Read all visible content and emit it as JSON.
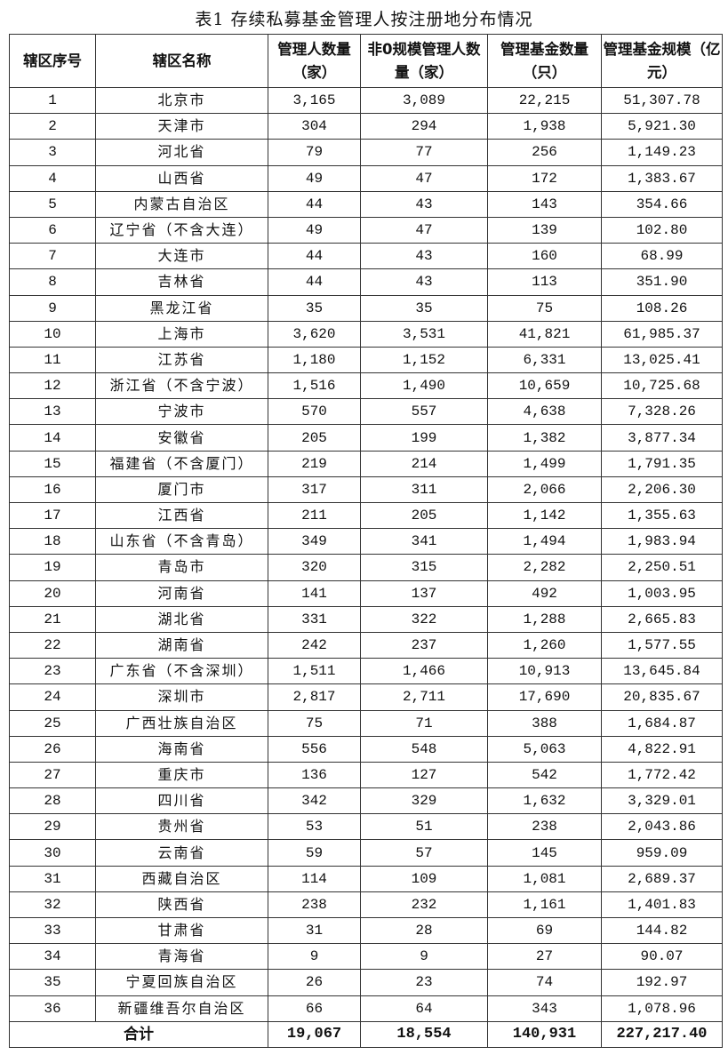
{
  "title": "表1 存续私募基金管理人按注册地分布情况",
  "headers": [
    "辖区序号",
    "辖区名称",
    "管理人数量（家）",
    "非0规模管理人数量（家）",
    "管理基金数量（只）",
    "管理基金规模（亿元）"
  ],
  "rows": [
    [
      "1",
      "北京市",
      "3,165",
      "3,089",
      "22,215",
      "51,307.78"
    ],
    [
      "2",
      "天津市",
      "304",
      "294",
      "1,938",
      "5,921.30"
    ],
    [
      "3",
      "河北省",
      "79",
      "77",
      "256",
      "1,149.23"
    ],
    [
      "4",
      "山西省",
      "49",
      "47",
      "172",
      "1,383.67"
    ],
    [
      "5",
      "内蒙古自治区",
      "44",
      "43",
      "143",
      "354.66"
    ],
    [
      "6",
      "辽宁省（不含大连）",
      "49",
      "47",
      "139",
      "102.80"
    ],
    [
      "7",
      "大连市",
      "44",
      "43",
      "160",
      "68.99"
    ],
    [
      "8",
      "吉林省",
      "44",
      "43",
      "113",
      "351.90"
    ],
    [
      "9",
      "黑龙江省",
      "35",
      "35",
      "75",
      "108.26"
    ],
    [
      "10",
      "上海市",
      "3,620",
      "3,531",
      "41,821",
      "61,985.37"
    ],
    [
      "11",
      "江苏省",
      "1,180",
      "1,152",
      "6,331",
      "13,025.41"
    ],
    [
      "12",
      "浙江省（不含宁波）",
      "1,516",
      "1,490",
      "10,659",
      "10,725.68"
    ],
    [
      "13",
      "宁波市",
      "570",
      "557",
      "4,638",
      "7,328.26"
    ],
    [
      "14",
      "安徽省",
      "205",
      "199",
      "1,382",
      "3,877.34"
    ],
    [
      "15",
      "福建省（不含厦门）",
      "219",
      "214",
      "1,499",
      "1,791.35"
    ],
    [
      "16",
      "厦门市",
      "317",
      "311",
      "2,066",
      "2,206.30"
    ],
    [
      "17",
      "江西省",
      "211",
      "205",
      "1,142",
      "1,355.63"
    ],
    [
      "18",
      "山东省（不含青岛）",
      "349",
      "341",
      "1,494",
      "1,983.94"
    ],
    [
      "19",
      "青岛市",
      "320",
      "315",
      "2,282",
      "2,250.51"
    ],
    [
      "20",
      "河南省",
      "141",
      "137",
      "492",
      "1,003.95"
    ],
    [
      "21",
      "湖北省",
      "331",
      "322",
      "1,288",
      "2,665.83"
    ],
    [
      "22",
      "湖南省",
      "242",
      "237",
      "1,260",
      "1,577.55"
    ],
    [
      "23",
      "广东省（不含深圳）",
      "1,511",
      "1,466",
      "10,913",
      "13,645.84"
    ],
    [
      "24",
      "深圳市",
      "2,817",
      "2,711",
      "17,690",
      "20,835.67"
    ],
    [
      "25",
      "广西壮族自治区",
      "75",
      "71",
      "388",
      "1,684.87"
    ],
    [
      "26",
      "海南省",
      "556",
      "548",
      "5,063",
      "4,822.91"
    ],
    [
      "27",
      "重庆市",
      "136",
      "127",
      "542",
      "1,772.42"
    ],
    [
      "28",
      "四川省",
      "342",
      "329",
      "1,632",
      "3,329.01"
    ],
    [
      "29",
      "贵州省",
      "53",
      "51",
      "238",
      "2,043.86"
    ],
    [
      "30",
      "云南省",
      "59",
      "57",
      "145",
      "959.09"
    ],
    [
      "31",
      "西藏自治区",
      "114",
      "109",
      "1,081",
      "2,689.37"
    ],
    [
      "32",
      "陕西省",
      "238",
      "232",
      "1,161",
      "1,401.83"
    ],
    [
      "33",
      "甘肃省",
      "31",
      "28",
      "69",
      "144.82"
    ],
    [
      "34",
      "青海省",
      "9",
      "9",
      "27",
      "90.07"
    ],
    [
      "35",
      "宁夏回族自治区",
      "26",
      "23",
      "74",
      "192.97"
    ],
    [
      "36",
      "新疆维吾尔自治区",
      "66",
      "64",
      "343",
      "1,078.96"
    ]
  ],
  "total": {
    "label": "合计",
    "values": [
      "19,067",
      "18,554",
      "140,931",
      "227,217.40"
    ]
  }
}
